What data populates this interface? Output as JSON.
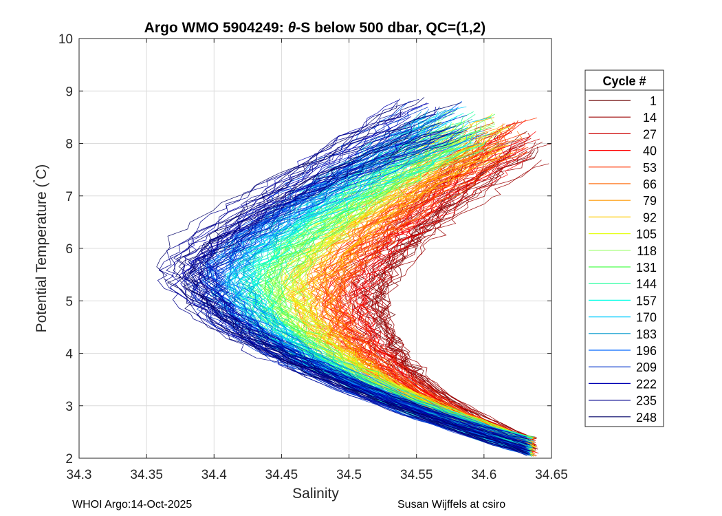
{
  "chart_data": {
    "type": "line",
    "title_left": "Argo WMO 5904249: ",
    "title_theta": "θ",
    "title_right": "-S below 500 dbar,  QC=(1,2)",
    "xlabel": "Salinity",
    "ylabel_main": "Potential Temperature (",
    "ylabel_deg": "˚",
    "ylabel_end": "C)",
    "xlim": [
      34.3,
      34.65
    ],
    "ylim": [
      2,
      10
    ],
    "xticks": [
      "34.3",
      "34.35",
      "34.4",
      "34.45",
      "34.5",
      "34.55",
      "34.6",
      "34.65"
    ],
    "yticks": [
      "2",
      "3",
      "4",
      "5",
      "6",
      "7",
      "8",
      "9",
      "10"
    ],
    "grid": true,
    "legend_title": "Cycle #",
    "legend_position": "right",
    "series": [
      {
        "name": "1",
        "color": "#6a0000"
      },
      {
        "name": "14",
        "color": "#9b0000"
      },
      {
        "name": "27",
        "color": "#cc0000"
      },
      {
        "name": "40",
        "color": "#ff0000"
      },
      {
        "name": "53",
        "color": "#ff3300"
      },
      {
        "name": "66",
        "color": "#ff6600"
      },
      {
        "name": "79",
        "color": "#ff9900"
      },
      {
        "name": "92",
        "color": "#ffcc00"
      },
      {
        "name": "105",
        "color": "#e6ff19"
      },
      {
        "name": "118",
        "color": "#99ff66"
      },
      {
        "name": "131",
        "color": "#4cff4c"
      },
      {
        "name": "144",
        "color": "#19ff99"
      },
      {
        "name": "157",
        "color": "#00ffe6"
      },
      {
        "name": "170",
        "color": "#00ccff"
      },
      {
        "name": "183",
        "color": "#0099cc"
      },
      {
        "name": "196",
        "color": "#0066ff"
      },
      {
        "name": "209",
        "color": "#0033cc"
      },
      {
        "name": "222",
        "color": "#0000b3"
      },
      {
        "name": "235",
        "color": "#00008c"
      },
      {
        "name": "248",
        "color": "#000066"
      }
    ]
  },
  "footer": {
    "left": "WHOI Argo:14-Oct-2025",
    "right": "Susan Wijffels at csiro"
  }
}
